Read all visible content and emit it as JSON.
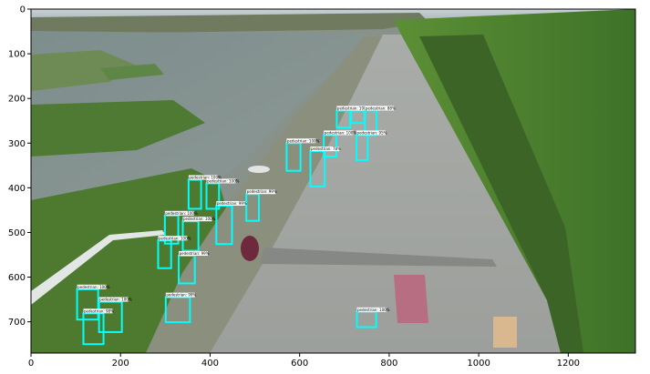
{
  "figure": {
    "x_axis": {
      "range": [
        0,
        1350
      ],
      "ticks": [
        {
          "value": 0,
          "label": "0"
        },
        {
          "value": 200,
          "label": "200"
        },
        {
          "value": 400,
          "label": "400"
        },
        {
          "value": 600,
          "label": "600"
        },
        {
          "value": 800,
          "label": "800"
        },
        {
          "value": 1000,
          "label": "1000"
        },
        {
          "value": 1200,
          "label": "1200"
        }
      ]
    },
    "y_axis": {
      "range": [
        0,
        770
      ],
      "inverted": true,
      "ticks": [
        {
          "value": 0,
          "label": "0"
        },
        {
          "value": 100,
          "label": "100"
        },
        {
          "value": 200,
          "label": "200"
        },
        {
          "value": 300,
          "label": "300"
        },
        {
          "value": 400,
          "label": "400"
        },
        {
          "value": 500,
          "label": "500"
        },
        {
          "value": 600,
          "label": "600"
        },
        {
          "value": 700,
          "label": "700"
        }
      ]
    },
    "box_color": "#00ffff",
    "detections": [
      {
        "label": "pedestrian: 100%",
        "x1": 715,
        "y1": 227,
        "x2": 745,
        "y2": 255
      },
      {
        "label": "pedestrian: 100%",
        "x1": 683,
        "y1": 227,
        "x2": 713,
        "y2": 265
      },
      {
        "label": "pedestrian: 88%",
        "x1": 746,
        "y1": 227,
        "x2": 772,
        "y2": 282
      },
      {
        "label": "pedestrian: 100%",
        "x1": 654,
        "y1": 282,
        "x2": 682,
        "y2": 330
      },
      {
        "label": "pedestrian: 95%",
        "x1": 727,
        "y1": 282,
        "x2": 752,
        "y2": 338
      },
      {
        "label": "pedestrian: 100%",
        "x1": 571,
        "y1": 300,
        "x2": 602,
        "y2": 362
      },
      {
        "label": "pedestrian: 78%",
        "x1": 624,
        "y1": 318,
        "x2": 656,
        "y2": 397
      },
      {
        "label": "pedestrian: 100%",
        "x1": 352,
        "y1": 382,
        "x2": 380,
        "y2": 447
      },
      {
        "label": "pedestrian: 100%",
        "x1": 392,
        "y1": 390,
        "x2": 420,
        "y2": 447
      },
      {
        "label": "pedestrian: 99%",
        "x1": 481,
        "y1": 414,
        "x2": 509,
        "y2": 474
      },
      {
        "label": "pedestrian: 99%",
        "x1": 414,
        "y1": 440,
        "x2": 449,
        "y2": 526
      },
      {
        "label": "pedestrian: 100%",
        "x1": 299,
        "y1": 462,
        "x2": 329,
        "y2": 525
      },
      {
        "label": "pedestrian: 100%",
        "x1": 339,
        "y1": 475,
        "x2": 374,
        "y2": 541
      },
      {
        "label": "pedestrian: 100%",
        "x1": 284,
        "y1": 518,
        "x2": 313,
        "y2": 580
      },
      {
        "label": "pedestrian: 99%",
        "x1": 330,
        "y1": 552,
        "x2": 366,
        "y2": 614
      },
      {
        "label": "pedestrian: 99%",
        "x1": 301,
        "y1": 645,
        "x2": 355,
        "y2": 701
      },
      {
        "label": "pedestrian: 100%",
        "x1": 103,
        "y1": 627,
        "x2": 150,
        "y2": 695
      },
      {
        "label": "pedestrian: 100%",
        "x1": 152,
        "y1": 655,
        "x2": 203,
        "y2": 723
      },
      {
        "label": "pedestrian: 98%",
        "x1": 117,
        "y1": 681,
        "x2": 162,
        "y2": 750
      },
      {
        "label": "pedestrian: 100%",
        "x1": 728,
        "y1": 678,
        "x2": 771,
        "y2": 712
      }
    ]
  }
}
